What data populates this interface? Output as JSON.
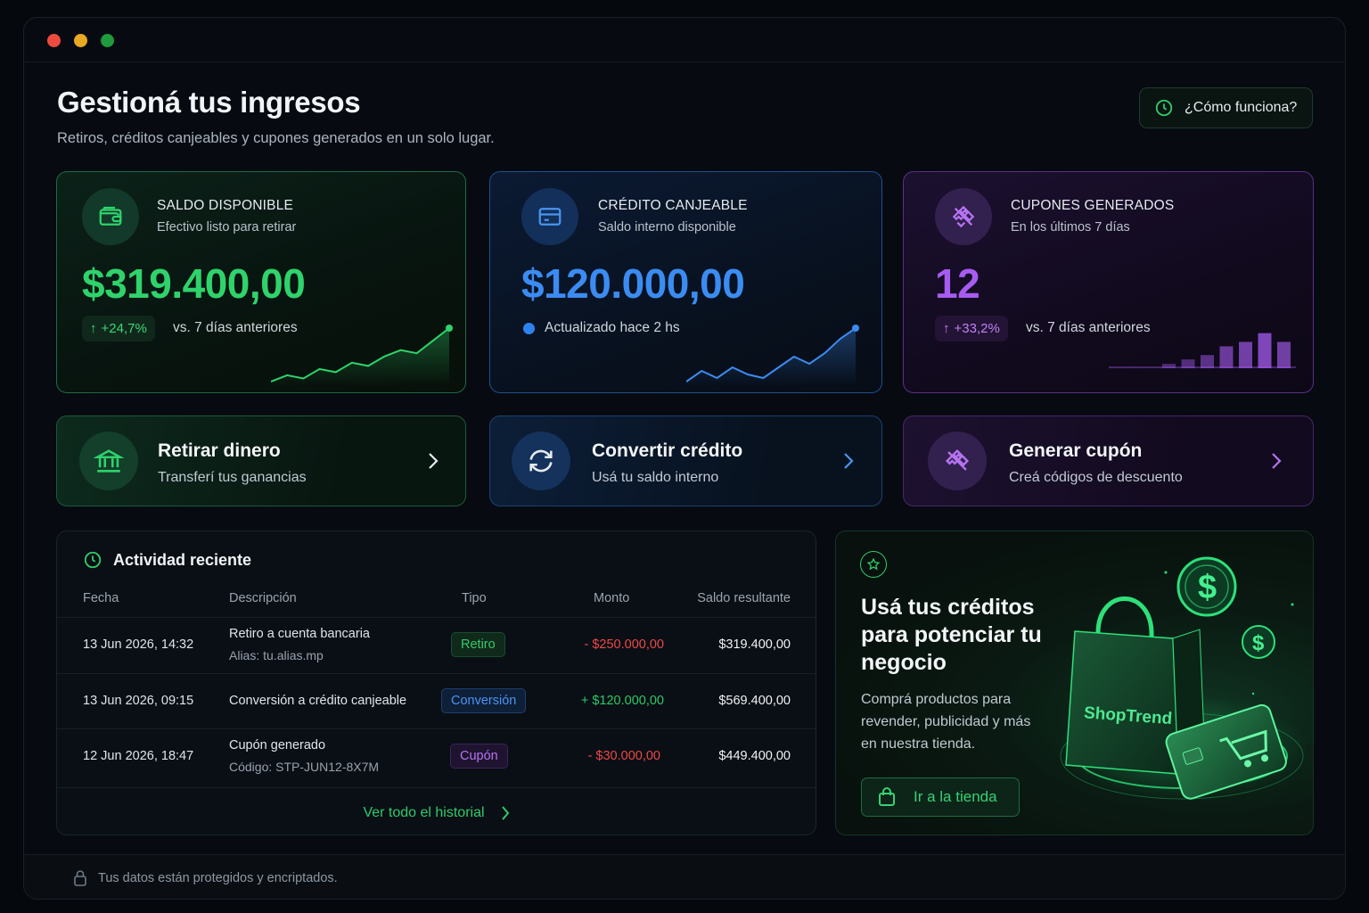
{
  "window": {
    "controls": [
      "close",
      "minimize",
      "maximize"
    ]
  },
  "header": {
    "title": "Gestioná tus ingresos",
    "subtitle": "Retiros, créditos canjeables y cupones generados en un solo lugar.",
    "help_button": "¿Cómo funciona?",
    "help_icon": "clock-icon"
  },
  "stats": {
    "balance": {
      "label": "SALDO DISPONIBLE",
      "sub": "Efectivo listo para retirar",
      "value": "$319.400,00",
      "delta": "+24,7%",
      "delta_text": "vs. 7 días anteriores",
      "icon": "wallet-icon",
      "accent": "#2fd36b",
      "trend": [
        2,
        4,
        3,
        6,
        5,
        8,
        7,
        10,
        12,
        11,
        15,
        19
      ]
    },
    "credit": {
      "label": "CRÉDITO CANJEABLE",
      "sub": "Saldo interno disponible",
      "value": "$120.000,00",
      "updated": "Actualizado hace 2 hs",
      "icon": "credit-card-icon",
      "accent": "#3b8cf2",
      "trend": [
        3,
        6,
        4,
        7,
        5,
        4,
        7,
        10,
        8,
        11,
        15,
        18
      ]
    },
    "coupons": {
      "label": "CUPONES GENERADOS",
      "sub": "En los últimos 7 días",
      "value": "12",
      "delta": "+33,2%",
      "delta_text": "vs. 7 días anteriores",
      "icon": "coupon-icon",
      "accent": "#a65cf0",
      "bars": [
        1,
        2,
        3,
        5,
        6,
        8,
        6,
        10,
        13
      ]
    }
  },
  "actions": [
    {
      "title": "Retirar dinero",
      "sub": "Transferí tus ganancias",
      "icon": "bank-icon"
    },
    {
      "title": "Convertir crédito",
      "sub": "Usá tu saldo interno",
      "icon": "refresh-icon"
    },
    {
      "title": "Generar cupón",
      "sub": "Creá códigos de descuento",
      "icon": "coupon-icon"
    }
  ],
  "activity": {
    "title": "Actividad reciente",
    "columns": {
      "date": "Fecha",
      "description": "Descripción",
      "type": "Tipo",
      "amount": "Monto",
      "balance": "Saldo resultante"
    },
    "rows": [
      {
        "date": "13 Jun 2026, 14:32",
        "description": "Retiro a cuenta bancaria",
        "detail": "Alias: tu.alias.mp",
        "type": "Retiro",
        "amount": "- $250.000,00",
        "balance": "$319.400,00"
      },
      {
        "date": "13 Jun 2026, 09:15",
        "description": "Conversión a crédito canjeable",
        "detail": "",
        "type": "Conversión",
        "amount": "+ $120.000,00",
        "balance": "$569.400,00"
      },
      {
        "date": "12 Jun 2026, 18:47",
        "description": "Cupón generado",
        "detail": "Código: STP-JUN12-8X7M",
        "type": "Cupón",
        "amount": "- $30.000,00",
        "balance": "$449.400,00"
      }
    ],
    "see_all": "Ver todo el historial"
  },
  "promo": {
    "title": "Usá tus créditos para potenciar tu negocio",
    "text": "Comprá productos para revender, publicidad y más en nuestra tienda.",
    "button": "Ir a la tienda",
    "brand": "ShopTrend"
  },
  "footer": {
    "text": "Tus datos están protegidos y encriptados."
  }
}
